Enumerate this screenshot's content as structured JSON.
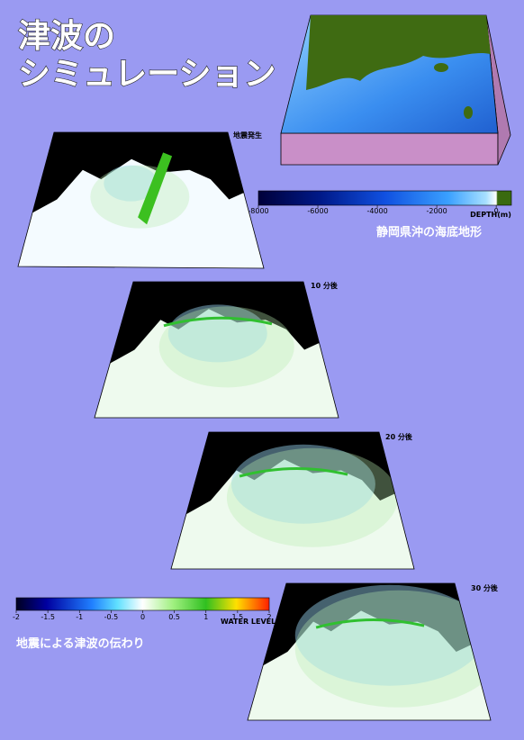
{
  "poster": {
    "title": [
      "津波の",
      "シミュレーション"
    ],
    "depth_colorbar": {
      "ticks": [
        -8000,
        -6000,
        -4000,
        -2000,
        0
      ],
      "label": "DEPTH(m)",
      "caption": "静岡県沖の海底地形"
    },
    "panels": [
      {
        "label": "地震発生"
      },
      {
        "label": "10 分後"
      },
      {
        "label": "20 分後"
      },
      {
        "label": "30 分後"
      }
    ],
    "level_colorbar": {
      "ticks": [
        -2,
        -1.5,
        -1,
        -0.5,
        0,
        0.5,
        1,
        1.5,
        2
      ],
      "label": "WATER LEVEL (m)",
      "caption": "地震による津波の伝わり"
    }
  }
}
